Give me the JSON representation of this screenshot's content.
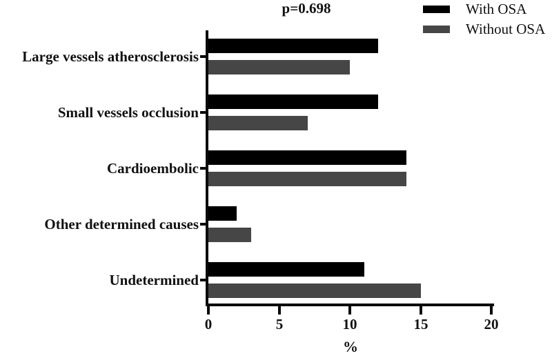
{
  "chart_data": {
    "type": "bar",
    "orientation": "horizontal",
    "title": "p=0.698",
    "xlabel": "%",
    "xlim": [
      0,
      20
    ],
    "xticks": [
      0,
      5,
      10,
      15,
      20
    ],
    "grid": false,
    "legend_position": "top-right",
    "categories": [
      "Large vessels atherosclerosis",
      "Small vessels occlusion",
      "Cardioembolic",
      "Other determined causes",
      "Undetermined"
    ],
    "series": [
      {
        "name": "With OSA",
        "color": "#000000",
        "values": [
          12,
          12,
          14,
          2,
          11
        ]
      },
      {
        "name": "Without OSA",
        "color": "#464646",
        "values": [
          10,
          7,
          14,
          3,
          15
        ]
      }
    ]
  }
}
